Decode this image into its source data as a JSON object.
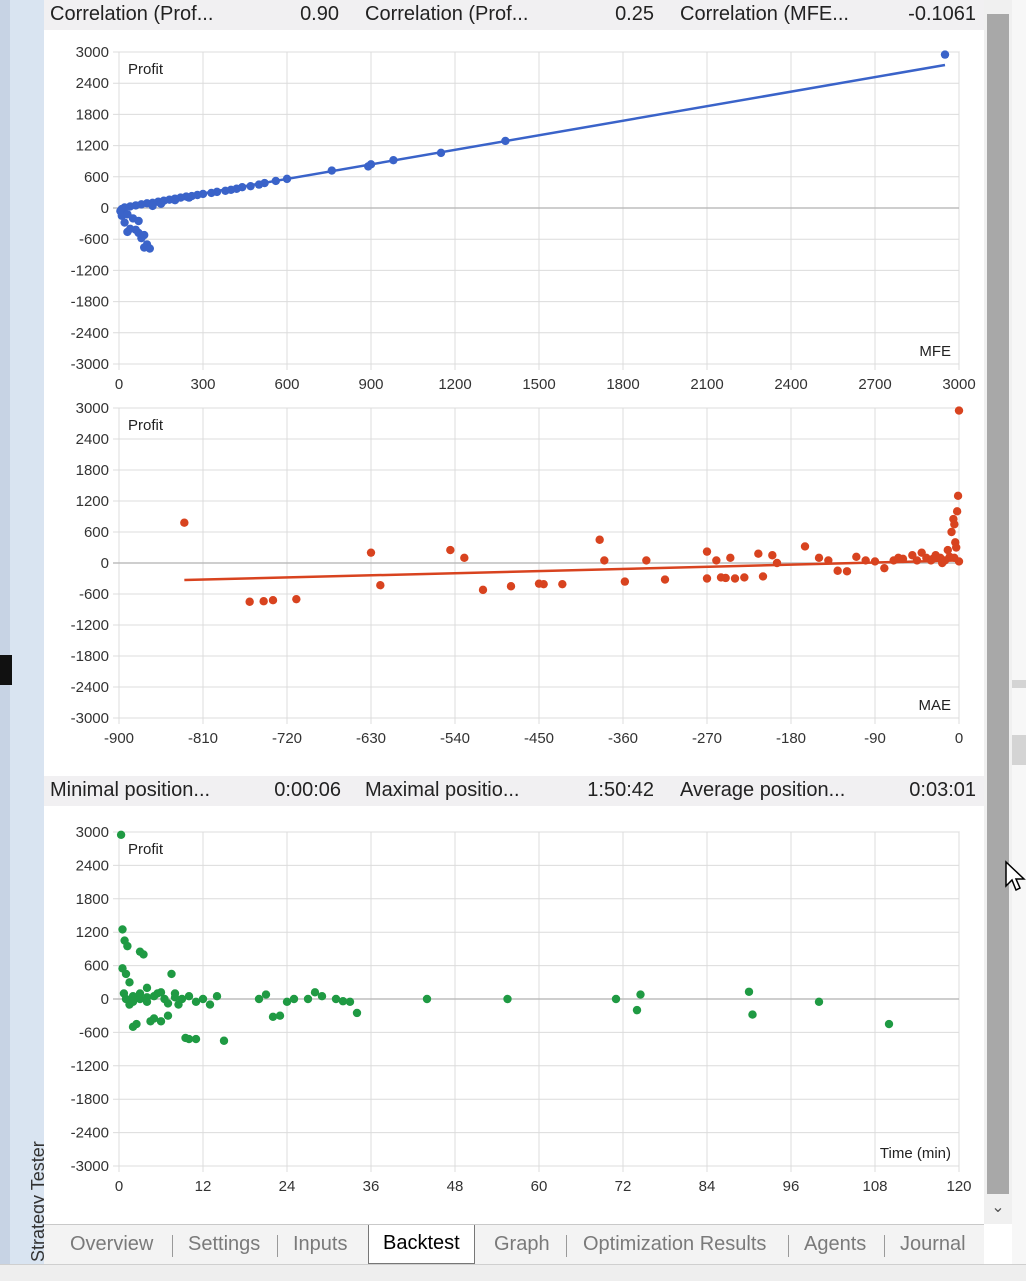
{
  "stats_top": [
    {
      "label": "Correlation (Prof...",
      "value": "0.90"
    },
    {
      "label": "Correlation (Prof...",
      "value": "0.25"
    },
    {
      "label": "Correlation (MFE...",
      "value": "-0.1061"
    }
  ],
  "stats_mid": [
    {
      "label": "Minimal position...",
      "value": "0:00:06"
    },
    {
      "label": "Maximal positio...",
      "value": "1:50:42"
    },
    {
      "label": "Average position...",
      "value": "0:03:01"
    }
  ],
  "tabs": [
    {
      "label": "Overview"
    },
    {
      "label": "Settings"
    },
    {
      "label": "Inputs"
    },
    {
      "label": "Backtest",
      "active": true
    },
    {
      "label": "Graph"
    },
    {
      "label": "Optimization Results"
    },
    {
      "label": "Agents"
    },
    {
      "label": "Journal"
    }
  ],
  "side_label": "Strategy Tester",
  "colors": {
    "mfe": "#3a63c9",
    "mae": "#d8431f",
    "time": "#1f9a43",
    "grid": "#dcdcdc"
  },
  "chart_data": [
    {
      "type": "scatter",
      "ylabel": "Profit",
      "xlabel": "MFE",
      "xlim": [
        0,
        3000
      ],
      "ylim": [
        -3000,
        3000
      ],
      "xticks": [
        0,
        300,
        600,
        900,
        1200,
        1500,
        1800,
        2100,
        2400,
        2700,
        3000
      ],
      "yticks": [
        3000,
        2400,
        1800,
        1200,
        600,
        0,
        -600,
        -1200,
        -1800,
        -2400,
        -3000
      ],
      "trendline": [
        [
          0,
          0
        ],
        [
          2950,
          2750
        ]
      ],
      "points": [
        [
          2950,
          2950
        ],
        [
          1380,
          1290
        ],
        [
          1150,
          1060
        ],
        [
          980,
          920
        ],
        [
          900,
          840
        ],
        [
          890,
          800
        ],
        [
          760,
          720
        ],
        [
          600,
          560
        ],
        [
          560,
          520
        ],
        [
          520,
          480
        ],
        [
          500,
          450
        ],
        [
          470,
          420
        ],
        [
          440,
          400
        ],
        [
          420,
          370
        ],
        [
          400,
          350
        ],
        [
          380,
          330
        ],
        [
          350,
          310
        ],
        [
          330,
          290
        ],
        [
          300,
          270
        ],
        [
          280,
          250
        ],
        [
          260,
          230
        ],
        [
          240,
          220
        ],
        [
          220,
          200
        ],
        [
          200,
          180
        ],
        [
          180,
          160
        ],
        [
          160,
          140
        ],
        [
          140,
          120
        ],
        [
          120,
          100
        ],
        [
          100,
          90
        ],
        [
          80,
          70
        ],
        [
          60,
          50
        ],
        [
          40,
          30
        ],
        [
          20,
          10
        ],
        [
          10,
          -20
        ],
        [
          5,
          -60
        ],
        [
          10,
          -150
        ],
        [
          20,
          -280
        ],
        [
          40,
          -400
        ],
        [
          30,
          -460
        ],
        [
          60,
          -420
        ],
        [
          70,
          -480
        ],
        [
          90,
          -520
        ],
        [
          80,
          -580
        ],
        [
          100,
          -700
        ],
        [
          90,
          -760
        ],
        [
          110,
          -780
        ],
        [
          50,
          -200
        ],
        [
          70,
          -250
        ],
        [
          30,
          -120
        ],
        [
          120,
          40
        ],
        [
          150,
          80
        ],
        [
          250,
          200
        ],
        [
          200,
          150
        ]
      ]
    },
    {
      "type": "scatter",
      "ylabel": "Profit",
      "xlabel": "MAE",
      "xlim": [
        -900,
        0
      ],
      "ylim": [
        -3000,
        3000
      ],
      "xticks": [
        -900,
        -810,
        -720,
        -630,
        -540,
        -450,
        -360,
        -270,
        -180,
        -90,
        0
      ],
      "yticks": [
        3000,
        2400,
        1800,
        1200,
        600,
        0,
        -600,
        -1200,
        -1800,
        -2400,
        -3000
      ],
      "trendline": [
        [
          -830,
          -330
        ],
        [
          0,
          50
        ]
      ],
      "points": [
        [
          -830,
          780
        ],
        [
          -760,
          -750
        ],
        [
          -745,
          -740
        ],
        [
          -735,
          -720
        ],
        [
          -710,
          -700
        ],
        [
          -630,
          200
        ],
        [
          -620,
          -430
        ],
        [
          -545,
          250
        ],
        [
          -530,
          100
        ],
        [
          -510,
          -520
        ],
        [
          -480,
          -450
        ],
        [
          -450,
          -400
        ],
        [
          -445,
          -410
        ],
        [
          -425,
          -410
        ],
        [
          -385,
          450
        ],
        [
          -380,
          50
        ],
        [
          -358,
          -360
        ],
        [
          -335,
          50
        ],
        [
          -315,
          -320
        ],
        [
          -270,
          220
        ],
        [
          -270,
          -300
        ],
        [
          -260,
          50
        ],
        [
          -255,
          -280
        ],
        [
          -250,
          -290
        ],
        [
          -245,
          100
        ],
        [
          -240,
          -300
        ],
        [
          -230,
          -280
        ],
        [
          -215,
          180
        ],
        [
          -210,
          -260
        ],
        [
          -200,
          150
        ],
        [
          -195,
          0
        ],
        [
          -165,
          320
        ],
        [
          -150,
          100
        ],
        [
          -140,
          50
        ],
        [
          -130,
          -150
        ],
        [
          -120,
          -160
        ],
        [
          -110,
          120
        ],
        [
          -100,
          50
        ],
        [
          -90,
          30
        ],
        [
          -80,
          -100
        ],
        [
          -70,
          50
        ],
        [
          -65,
          100
        ],
        [
          -60,
          80
        ],
        [
          -50,
          150
        ],
        [
          -45,
          50
        ],
        [
          -40,
          200
        ],
        [
          -35,
          100
        ],
        [
          -30,
          50
        ],
        [
          -25,
          150
        ],
        [
          -20,
          100
        ],
        [
          -15,
          50
        ],
        [
          -10,
          120
        ],
        [
          -8,
          600
        ],
        [
          -6,
          850
        ],
        [
          -5,
          750
        ],
        [
          -4,
          400
        ],
        [
          -3,
          300
        ],
        [
          -2,
          1000
        ],
        [
          -1,
          1300
        ],
        [
          0,
          2950
        ],
        [
          -12,
          250
        ],
        [
          -18,
          0
        ],
        [
          -28,
          80
        ],
        [
          -5,
          100
        ],
        [
          0,
          30
        ]
      ]
    },
    {
      "type": "scatter",
      "ylabel": "Profit",
      "xlabel": "Time (min)",
      "xlim": [
        0,
        120
      ],
      "ylim": [
        -3000,
        3000
      ],
      "xticks": [
        0,
        12,
        24,
        36,
        48,
        60,
        72,
        84,
        96,
        108,
        120
      ],
      "yticks": [
        3000,
        2400,
        1800,
        1200,
        600,
        0,
        -600,
        -1200,
        -1800,
        -2400,
        -3000
      ],
      "points": [
        [
          0.3,
          2950
        ],
        [
          0.5,
          1250
        ],
        [
          0.8,
          1050
        ],
        [
          1.2,
          950
        ],
        [
          0.5,
          550
        ],
        [
          1,
          450
        ],
        [
          1.5,
          300
        ],
        [
          0.7,
          100
        ],
        [
          1.5,
          -100
        ],
        [
          2,
          -500
        ],
        [
          2.5,
          -450
        ],
        [
          3,
          850
        ],
        [
          3.5,
          800
        ],
        [
          4,
          200
        ],
        [
          4.5,
          -400
        ],
        [
          5,
          -350
        ],
        [
          5.5,
          100
        ],
        [
          6,
          -400
        ],
        [
          6.5,
          0
        ],
        [
          7,
          -300
        ],
        [
          7.5,
          450
        ],
        [
          8,
          100
        ],
        [
          8.5,
          -100
        ],
        [
          9,
          0
        ],
        [
          9.5,
          -700
        ],
        [
          10,
          -720
        ],
        [
          11,
          -720
        ],
        [
          12,
          0
        ],
        [
          13,
          -100
        ],
        [
          14,
          50
        ],
        [
          15,
          -750
        ],
        [
          2,
          50
        ],
        [
          3,
          100
        ],
        [
          4,
          -50
        ],
        [
          5,
          50
        ],
        [
          6,
          120
        ],
        [
          7,
          -80
        ],
        [
          8,
          30
        ],
        [
          10,
          50
        ],
        [
          11,
          -50
        ],
        [
          20,
          0
        ],
        [
          21,
          80
        ],
        [
          22,
          -320
        ],
        [
          23,
          -300
        ],
        [
          24,
          -50
        ],
        [
          25,
          0
        ],
        [
          27,
          0
        ],
        [
          28,
          120
        ],
        [
          29,
          50
        ],
        [
          31,
          0
        ],
        [
          32,
          -40
        ],
        [
          33,
          -50
        ],
        [
          34,
          -250
        ],
        [
          44,
          0
        ],
        [
          55.5,
          0
        ],
        [
          71,
          0
        ],
        [
          74,
          -200
        ],
        [
          74.5,
          80
        ],
        [
          90,
          130
        ],
        [
          90.5,
          -280
        ],
        [
          100,
          -50
        ],
        [
          110,
          -450
        ],
        [
          1,
          0
        ],
        [
          2,
          -50
        ],
        [
          3,
          0
        ],
        [
          4,
          30
        ]
      ]
    }
  ]
}
